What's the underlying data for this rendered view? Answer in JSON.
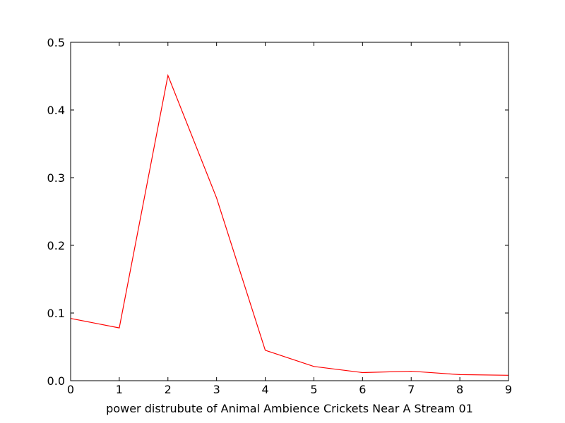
{
  "chart_data": {
    "type": "line",
    "title": "",
    "xlabel": "power distrubute of Animal Ambience Crickets Near A Stream 01",
    "ylabel": "",
    "xlim": [
      0,
      9
    ],
    "ylim": [
      0,
      0.5
    ],
    "xticks": [
      "0",
      "1",
      "2",
      "3",
      "4",
      "5",
      "6",
      "7",
      "8",
      "9"
    ],
    "yticks": [
      "0.0",
      "0.1",
      "0.2",
      "0.3",
      "0.4",
      "0.5"
    ],
    "grid": false,
    "legend": "none",
    "series": [
      {
        "color": "#ff0000",
        "x": [
          0,
          1,
          2,
          3,
          4,
          5,
          6,
          7,
          8,
          9
        ],
        "y": [
          0.092,
          0.078,
          0.451,
          0.27,
          0.045,
          0.021,
          0.012,
          0.014,
          0.009,
          0.008
        ]
      }
    ]
  }
}
